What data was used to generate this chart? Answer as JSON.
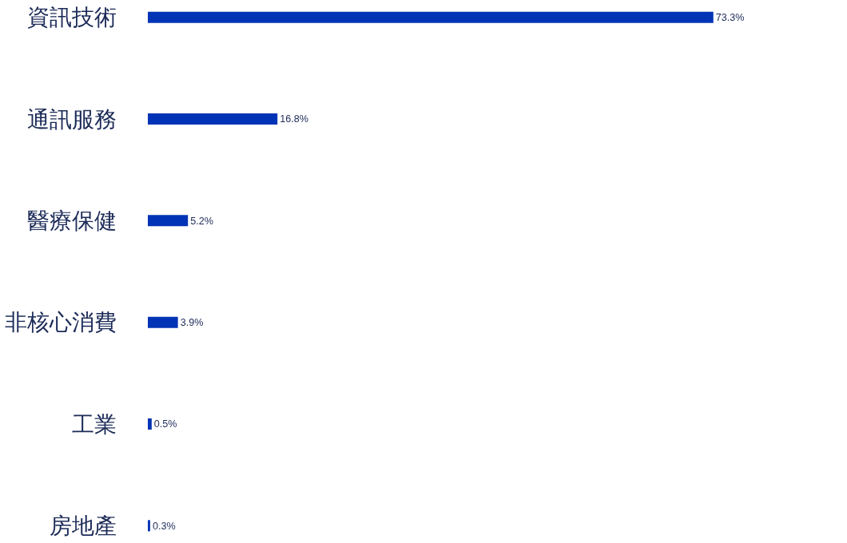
{
  "chart_data": {
    "type": "bar",
    "orientation": "horizontal",
    "categories": [
      "資訊技術",
      "通訊服務",
      "醫療保健",
      "非核心消費",
      "工業",
      "房地產"
    ],
    "values": [
      73.3,
      16.8,
      5.2,
      3.9,
      0.5,
      0.3
    ],
    "value_labels": [
      "73.3%",
      "16.8%",
      "5.2%",
      "3.9%",
      "0.5%",
      "0.3%"
    ],
    "color": "#0033b5",
    "tick_labels": "y",
    "grid": false,
    "legend": false
  }
}
